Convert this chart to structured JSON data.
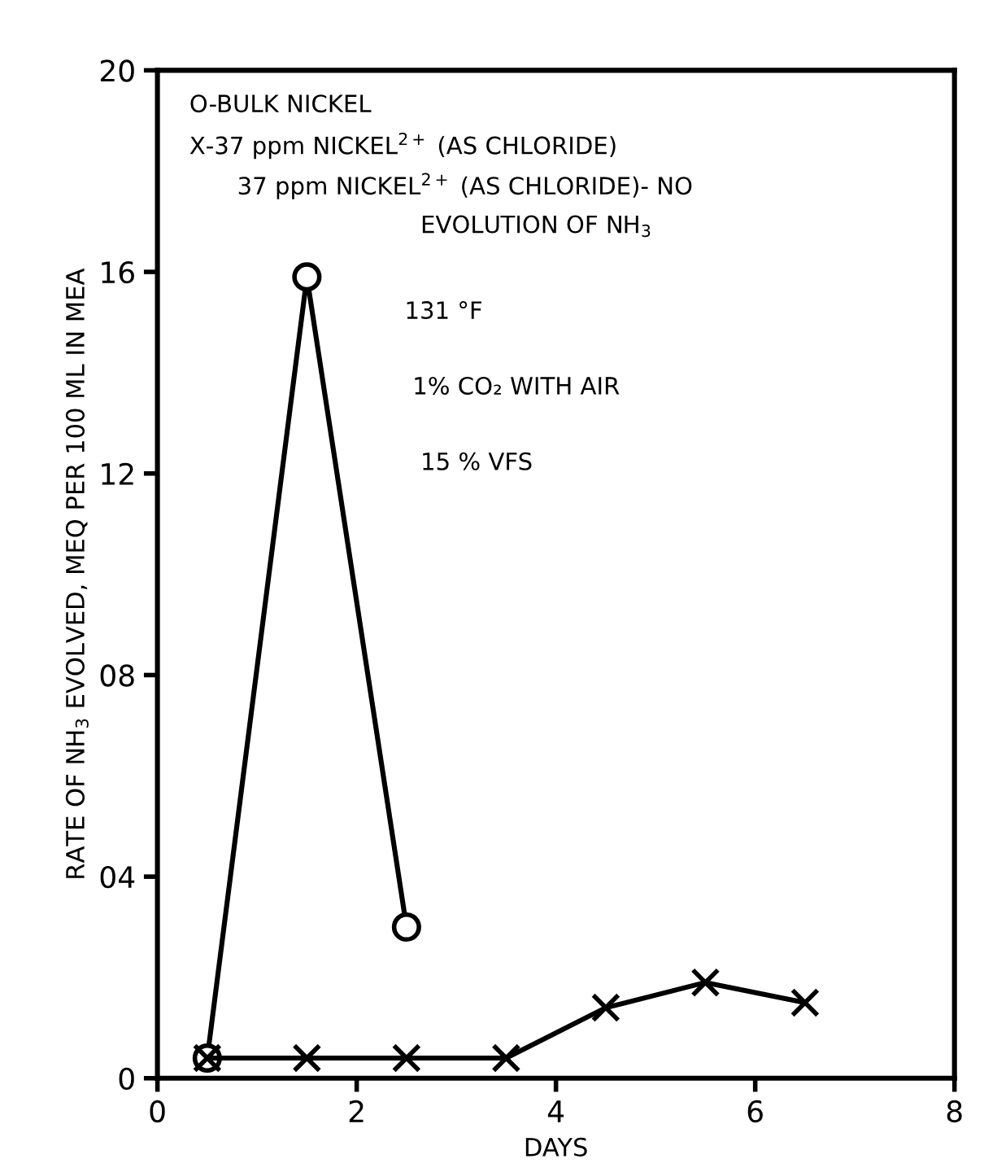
{
  "chart_data": {
    "type": "line",
    "xlabel": "DAYS",
    "ylabel": "RATE OF NH$_{3}$ EVOLVED, MEQ PER 100 ML IN MEA",
    "xlim": [
      0,
      8
    ],
    "xticks": [
      0,
      2,
      4,
      6,
      8
    ],
    "ylim": [
      0,
      20
    ],
    "yticks": [
      0,
      {
        "value": 4,
        "label": "04"
      },
      {
        "value": 8,
        "label": "08"
      },
      12,
      16,
      20
    ],
    "grid": false,
    "line_style": "solid",
    "series": [
      {
        "color": "#000000",
        "marker": "circle",
        "x": [
          0.5,
          1.5,
          2.5
        ],
        "values": [
          0.4,
          15.9,
          3.0
        ]
      },
      {
        "color": "#000000",
        "marker": "cross",
        "x": [
          0.5,
          1.5,
          2.5,
          3.5,
          4.5,
          5.5,
          6.5
        ],
        "values": [
          0.4,
          0.4,
          0.4,
          0.4,
          1.4,
          1.9,
          1.5
        ]
      }
    ],
    "annotations": [
      "O-BULK NICKEL",
      "X-37 ppm NICKEL$^{2+}$ (AS CHLORIDE)",
      "37 ppm NICKEL$^{2+}$ (AS CHLORIDE)- NO",
      "EVOLUTION OF NH$_{3}$",
      "131 °F",
      "1% CO₂ WITH AIR",
      "15 % VFS"
    ]
  }
}
